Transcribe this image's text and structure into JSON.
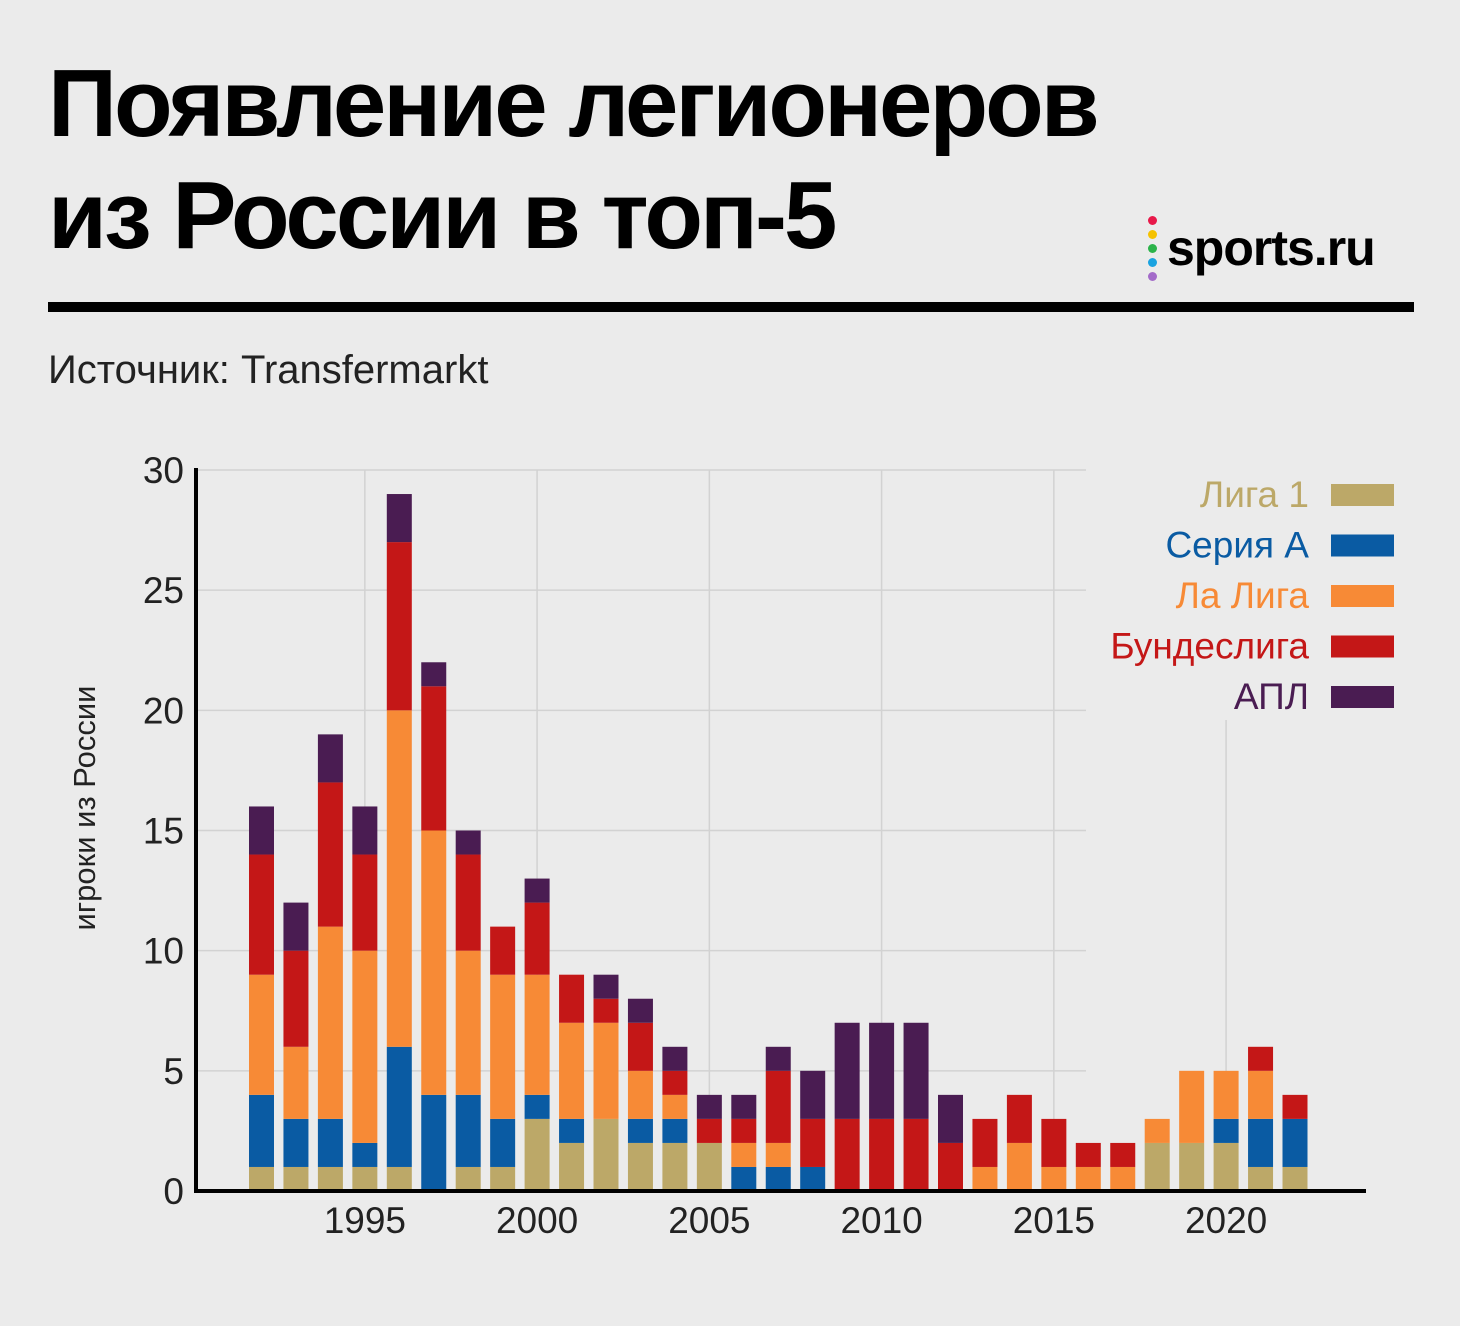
{
  "header": {
    "title_line1": "Появление легионеров",
    "title_line2": "из России в топ-5",
    "source": "Источник: Transfermarkt"
  },
  "logo": {
    "text": "sports.ru",
    "dot_colors": [
      "#e8194a",
      "#f5c200",
      "#2cb34a",
      "#1aa3e0",
      "#a36bc9"
    ]
  },
  "chart_data": {
    "type": "bar",
    "stacked": true,
    "ylabel": "игроки из России",
    "ylim": [
      0,
      30
    ],
    "yticks": [
      0,
      5,
      10,
      15,
      20,
      25,
      30
    ],
    "xticks": [
      1995,
      2000,
      2005,
      2010,
      2015,
      2020
    ],
    "grid": true,
    "legend_position": "top-right",
    "x": [
      1992,
      1993,
      1994,
      1995,
      1996,
      1997,
      1998,
      1999,
      2000,
      2001,
      2002,
      2003,
      2004,
      2005,
      2006,
      2007,
      2008,
      2009,
      2010,
      2011,
      2012,
      2013,
      2014,
      2015,
      2016,
      2017,
      2018,
      2019,
      2020,
      2021,
      2022
    ],
    "series": [
      {
        "name": "Лига 1",
        "color": "#bca868",
        "values": [
          1,
          1,
          1,
          1,
          1,
          0,
          1,
          1,
          3,
          2,
          3,
          2,
          2,
          2,
          0,
          0,
          0,
          0,
          0,
          0,
          0,
          0,
          0,
          0,
          0,
          0,
          2,
          2,
          2,
          1,
          1
        ]
      },
      {
        "name": "Серия А",
        "color": "#0a5ba3",
        "values": [
          3,
          2,
          2,
          1,
          5,
          4,
          3,
          2,
          1,
          1,
          0,
          1,
          1,
          0,
          1,
          1,
          1,
          0,
          0,
          0,
          0,
          0,
          0,
          0,
          0,
          0,
          0,
          0,
          1,
          2,
          2
        ]
      },
      {
        "name": "Ла Лига",
        "color": "#f78a36",
        "values": [
          5,
          3,
          8,
          8,
          14,
          11,
          6,
          6,
          5,
          4,
          4,
          2,
          1,
          0,
          1,
          1,
          0,
          0,
          0,
          0,
          0,
          1,
          2,
          1,
          1,
          1,
          1,
          3,
          2,
          2,
          0
        ]
      },
      {
        "name": "Бундеслига",
        "color": "#c41717",
        "values": [
          5,
          4,
          6,
          4,
          7,
          6,
          4,
          2,
          3,
          2,
          1,
          2,
          1,
          1,
          1,
          3,
          2,
          3,
          3,
          3,
          2,
          2,
          2,
          2,
          1,
          1,
          0,
          0,
          0,
          1,
          1
        ]
      },
      {
        "name": "АПЛ",
        "color": "#4a1c52",
        "values": [
          2,
          2,
          2,
          2,
          2,
          1,
          1,
          0,
          1,
          0,
          1,
          1,
          1,
          1,
          1,
          1,
          2,
          4,
          4,
          4,
          2,
          0,
          0,
          0,
          0,
          0,
          0,
          0,
          0,
          0,
          0
        ]
      }
    ]
  }
}
